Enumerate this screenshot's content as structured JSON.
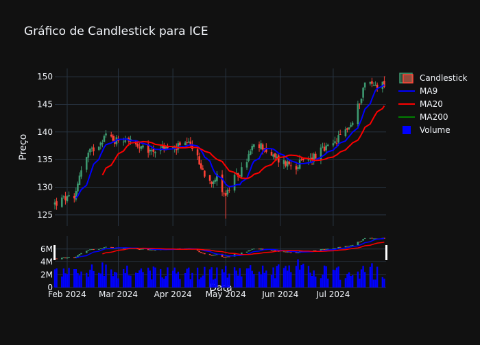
{
  "chart_data": {
    "type": "candlestick",
    "title": "Gráfico de Candlestick para ICE",
    "xlabel": "Data",
    "ylabel": "Preço",
    "ylim": [
      123,
      151.5
    ],
    "yticks": [
      125,
      130,
      135,
      140,
      145,
      150
    ],
    "volume_ylim": [
      0,
      8000000
    ],
    "volume_ticks": [
      {
        "value": 0,
        "label": "0"
      },
      {
        "value": 2000000,
        "label": "2M"
      },
      {
        "value": 4000000,
        "label": "4M"
      },
      {
        "value": 6000000,
        "label": "6M"
      }
    ],
    "xticks": [
      {
        "date": "2024-02-01",
        "label": "Feb 2024"
      },
      {
        "date": "2024-03-01",
        "label": "Mar 2024"
      },
      {
        "date": "2024-04-01",
        "label": "Apr 2024"
      },
      {
        "date": "2024-05-01",
        "label": "May 2024"
      },
      {
        "date": "2024-06-01",
        "label": "Jun 2024"
      },
      {
        "date": "2024-07-01",
        "label": "Jul 2024"
      }
    ],
    "legend": {
      "placement": "top-right",
      "items": [
        {
          "name": "Candlestick",
          "color": "#3d9970"
        },
        {
          "name": "MA9",
          "color": "#0000ff"
        },
        {
          "name": "MA20",
          "color": "#ff0000"
        },
        {
          "name": "MA200",
          "color": "#008000"
        },
        {
          "name": "Volume",
          "color": "#0000ff"
        }
      ]
    },
    "colors": {
      "increasing": "#3d9970",
      "decreasing": "#ff4136",
      "grid": "#283442",
      "text": "#f2f5fa"
    },
    "anchors": [
      [
        "2024-01-25",
        127
      ],
      [
        "2024-01-31",
        128
      ],
      [
        "2024-02-05",
        127.5
      ],
      [
        "2024-02-08",
        132.5
      ],
      [
        "2024-02-13",
        136
      ],
      [
        "2024-02-19",
        138
      ],
      [
        "2024-02-23",
        139.5
      ],
      [
        "2024-02-28",
        138.5
      ],
      [
        "2024-03-06",
        139
      ],
      [
        "2024-03-12",
        137
      ],
      [
        "2024-03-19",
        136.5
      ],
      [
        "2024-03-25",
        137.2
      ],
      [
        "2024-04-01",
        137
      ],
      [
        "2024-04-08",
        137.5
      ],
      [
        "2024-04-12",
        137.5
      ],
      [
        "2024-04-17",
        133.5
      ],
      [
        "2024-04-22",
        131.2
      ],
      [
        "2024-04-26",
        131.8
      ],
      [
        "2024-05-01",
        128.5
      ],
      [
        "2024-05-06",
        131.5
      ],
      [
        "2024-05-10",
        133
      ],
      [
        "2024-05-16",
        137
      ],
      [
        "2024-05-22",
        137.5
      ],
      [
        "2024-05-27",
        135.5
      ],
      [
        "2024-06-03",
        134.5
      ],
      [
        "2024-06-10",
        134
      ],
      [
        "2024-06-17",
        135
      ],
      [
        "2024-06-24",
        136.5
      ],
      [
        "2024-07-01",
        137.5
      ],
      [
        "2024-07-08",
        140.5
      ],
      [
        "2024-07-12",
        141.5
      ],
      [
        "2024-07-15",
        144.5
      ],
      [
        "2024-07-19",
        149
      ],
      [
        "2024-07-24",
        148.5
      ],
      [
        "2024-07-29",
        148.8
      ]
    ]
  }
}
